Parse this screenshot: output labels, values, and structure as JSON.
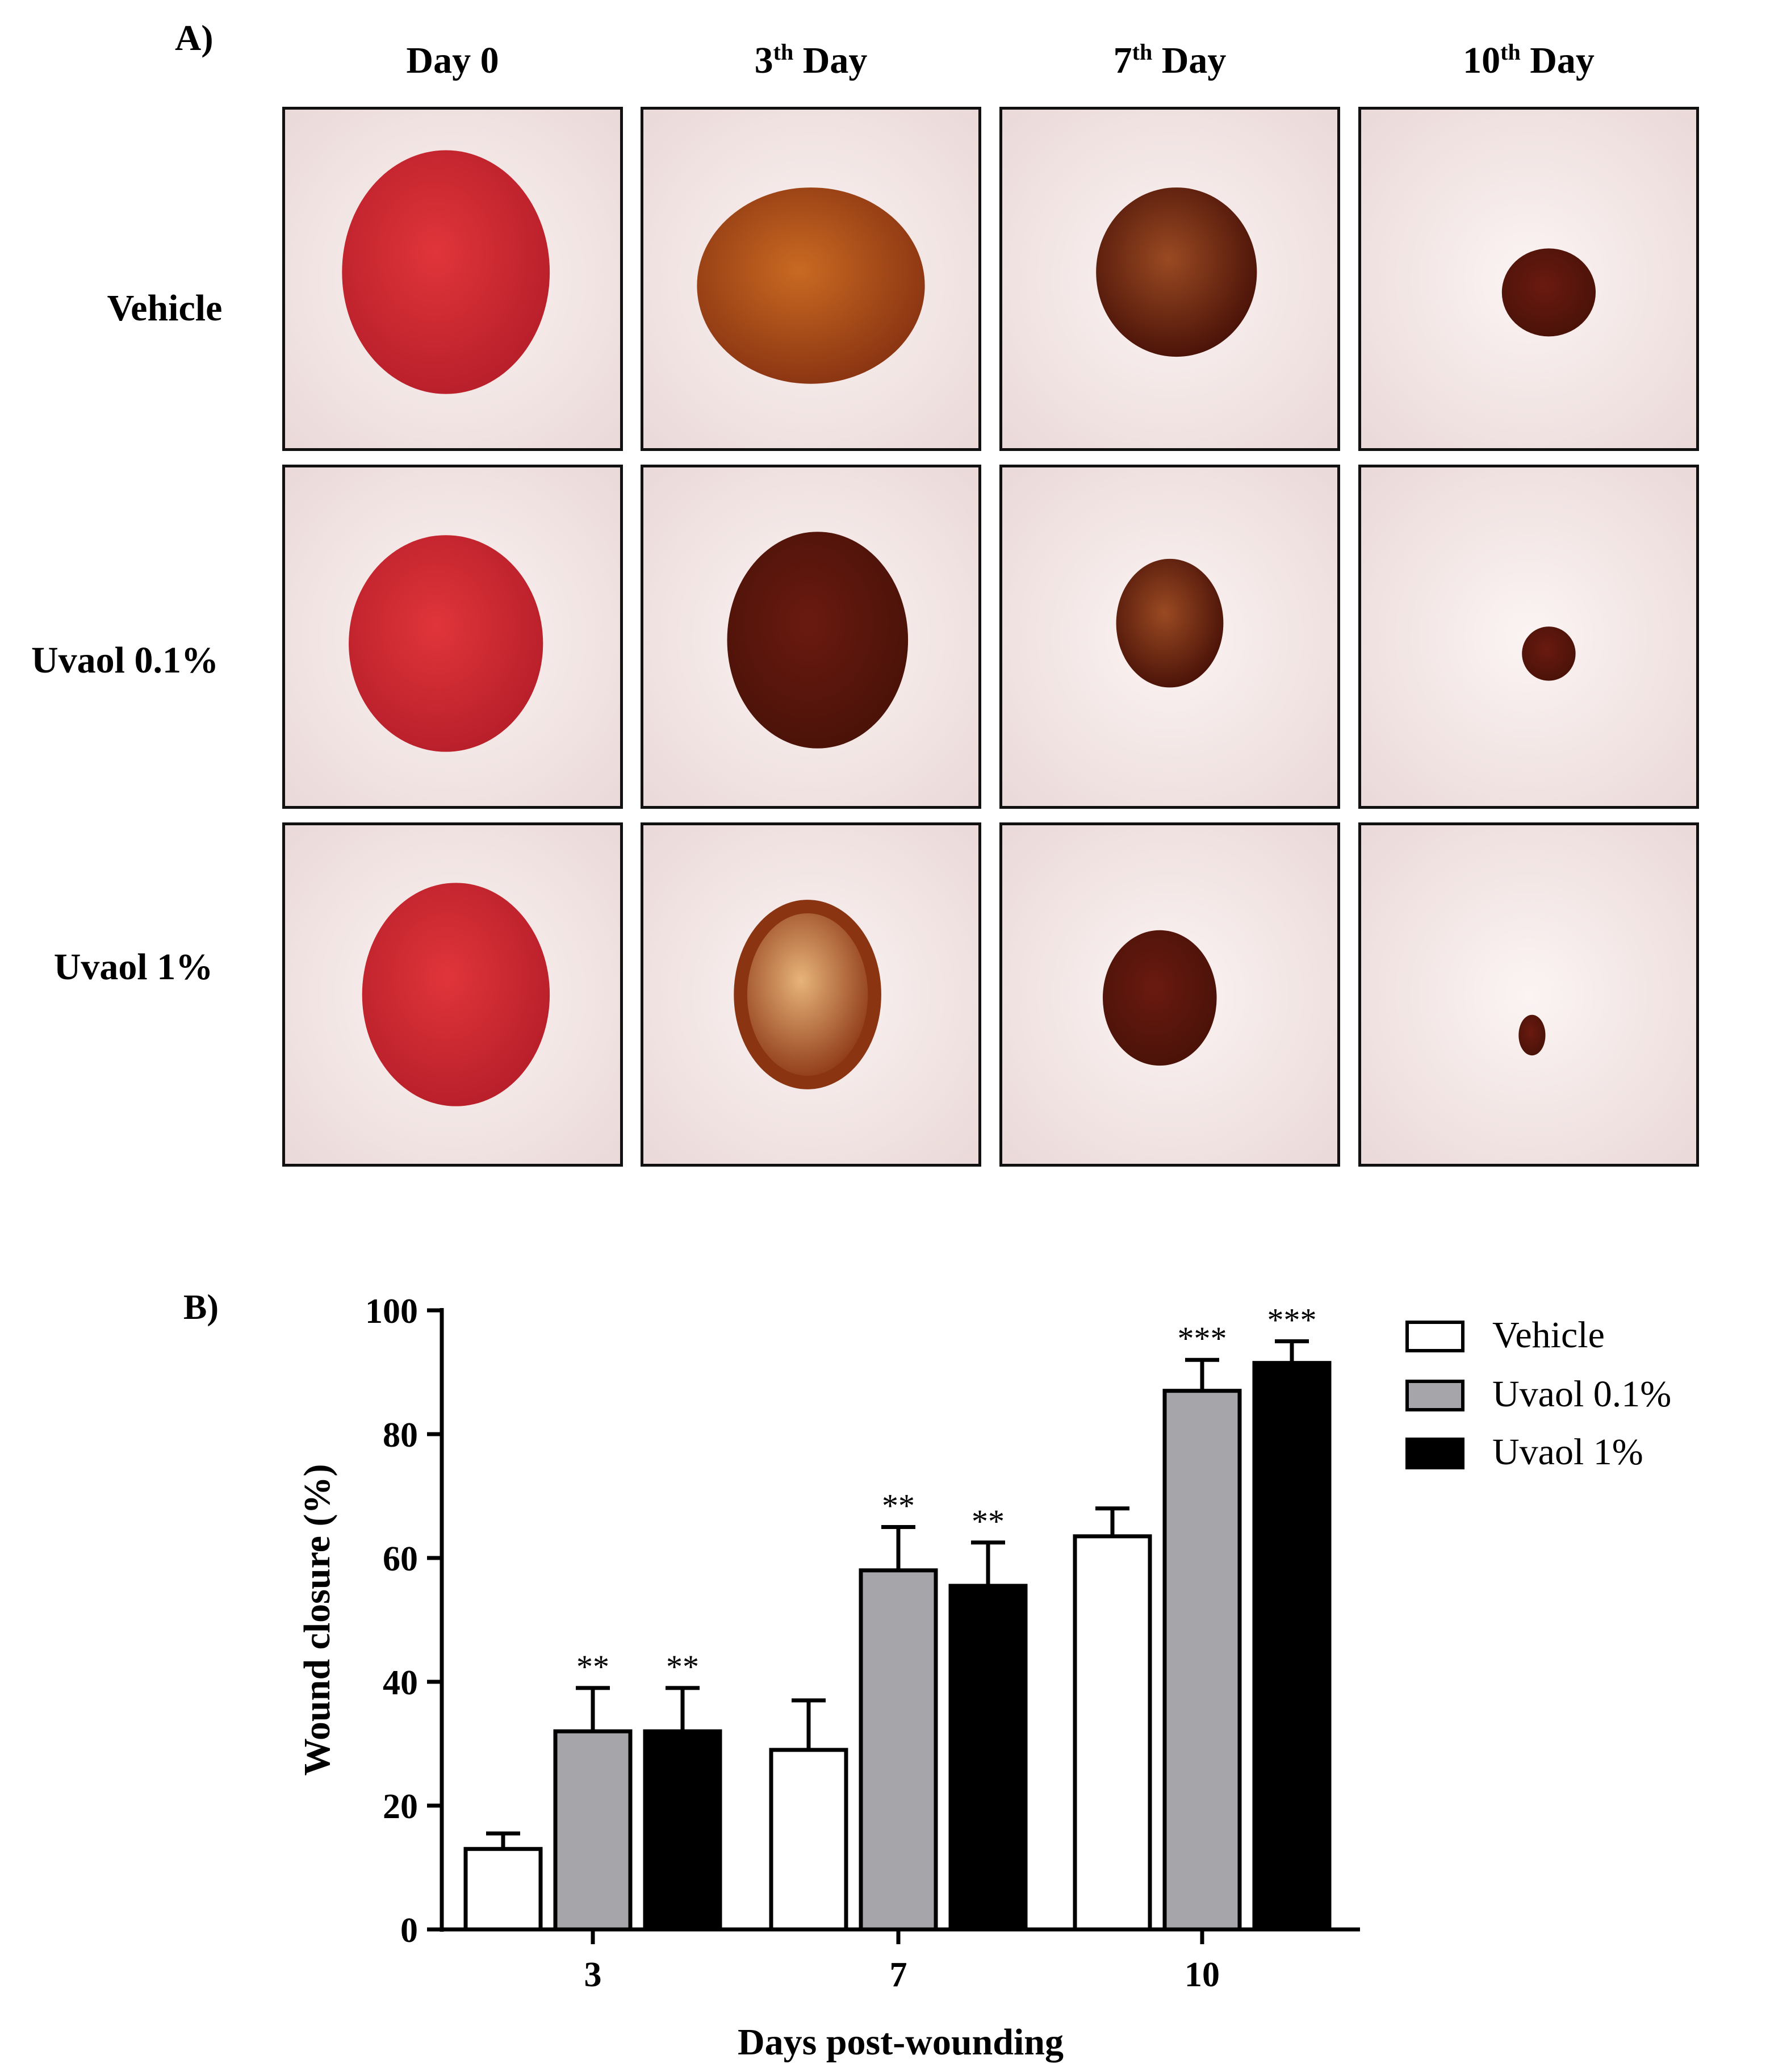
{
  "panel_a": {
    "label": "A)",
    "columns": [
      {
        "main": "Day 0",
        "sup": "",
        "rest": ""
      },
      {
        "main": "3",
        "sup": "th",
        "rest": " Day"
      },
      {
        "main": "7",
        "sup": "th",
        "rest": " Day"
      },
      {
        "main": "10",
        "sup": "th",
        "rest": " Day"
      }
    ],
    "rows": [
      "Vehicle",
      "Uvaol 0.1%",
      "Uvaol 1%"
    ],
    "wound_colors": {
      "fresh": "#e0353a",
      "fresh_dark": "#b81f2a",
      "scab": "#8a3412",
      "scab_dark": "#4a1208",
      "skin": "#f7ecec"
    }
  },
  "chart_data": {
    "type": "bar",
    "panel_label": "B)",
    "title": "",
    "xlabel": "Days post-wounding",
    "ylabel": "Wound closure (%)",
    "ylim": [
      0,
      100
    ],
    "yticks": [
      0,
      20,
      40,
      60,
      80,
      100
    ],
    "categories": [
      "3",
      "7",
      "10"
    ],
    "legend_position": "top-right",
    "series": [
      {
        "name": "Vehicle",
        "color": "#ffffff",
        "values": [
          13,
          29,
          63.5
        ],
        "errors": [
          2.5,
          8,
          4.5
        ],
        "significance": [
          "",
          "",
          ""
        ]
      },
      {
        "name": "Uvaol 0.1%",
        "color": "#a6a6aa",
        "values": [
          32,
          58,
          87
        ],
        "errors": [
          7,
          7,
          5
        ],
        "significance": [
          "**",
          "**",
          "***"
        ]
      },
      {
        "name": "Uvaol 1%",
        "color": "#000000",
        "values": [
          32,
          55.5,
          91.5
        ],
        "errors": [
          7,
          7,
          3.5
        ],
        "significance": [
          "**",
          "**",
          "***"
        ]
      }
    ]
  }
}
